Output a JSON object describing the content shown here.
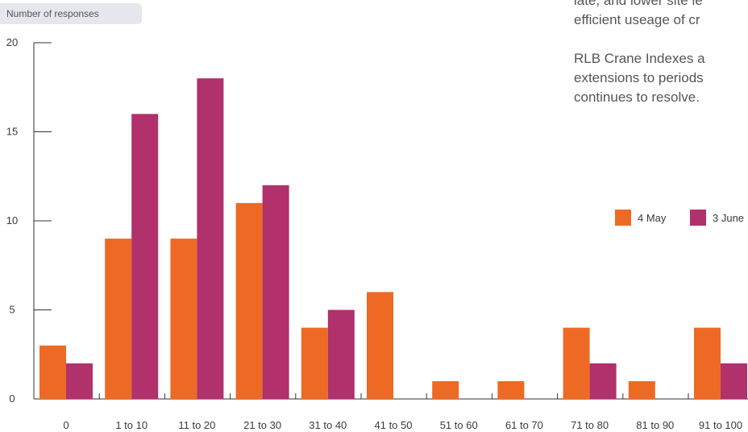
{
  "header": {
    "ylabel_badge": "Number of responses"
  },
  "prose": {
    "lines_p1": [
      "late, and lower site le",
      "efficient useage of cr"
    ],
    "lines_p2": [
      "RLB Crane Indexes a",
      "extensions to periods",
      "continues to resolve."
    ]
  },
  "colors": {
    "series_1": "#ee6a24",
    "series_2": "#b0316b",
    "axis": "#333333"
  },
  "chart_data": {
    "type": "bar",
    "title": "",
    "xlabel": "",
    "ylabel": "Number of responses",
    "categories": [
      "0",
      "1 to 10",
      "11 to 20",
      "21 to 30",
      "31 to 40",
      "41 to 50",
      "51 to 60",
      "61 to 70",
      "71 to 80",
      "81 to 90",
      "91 to 100"
    ],
    "series": [
      {
        "name": "4 May",
        "values": [
          3,
          9,
          9,
          11,
          4,
          6,
          1,
          1,
          4,
          1,
          4
        ]
      },
      {
        "name": "3 June",
        "values": [
          2,
          16,
          18,
          12,
          5,
          0,
          0,
          0,
          2,
          0,
          2
        ]
      }
    ],
    "ylim": [
      0,
      20
    ],
    "yticks": [
      "0",
      "5",
      "10",
      "15",
      "20"
    ],
    "grid": false,
    "legend_position": "right"
  }
}
